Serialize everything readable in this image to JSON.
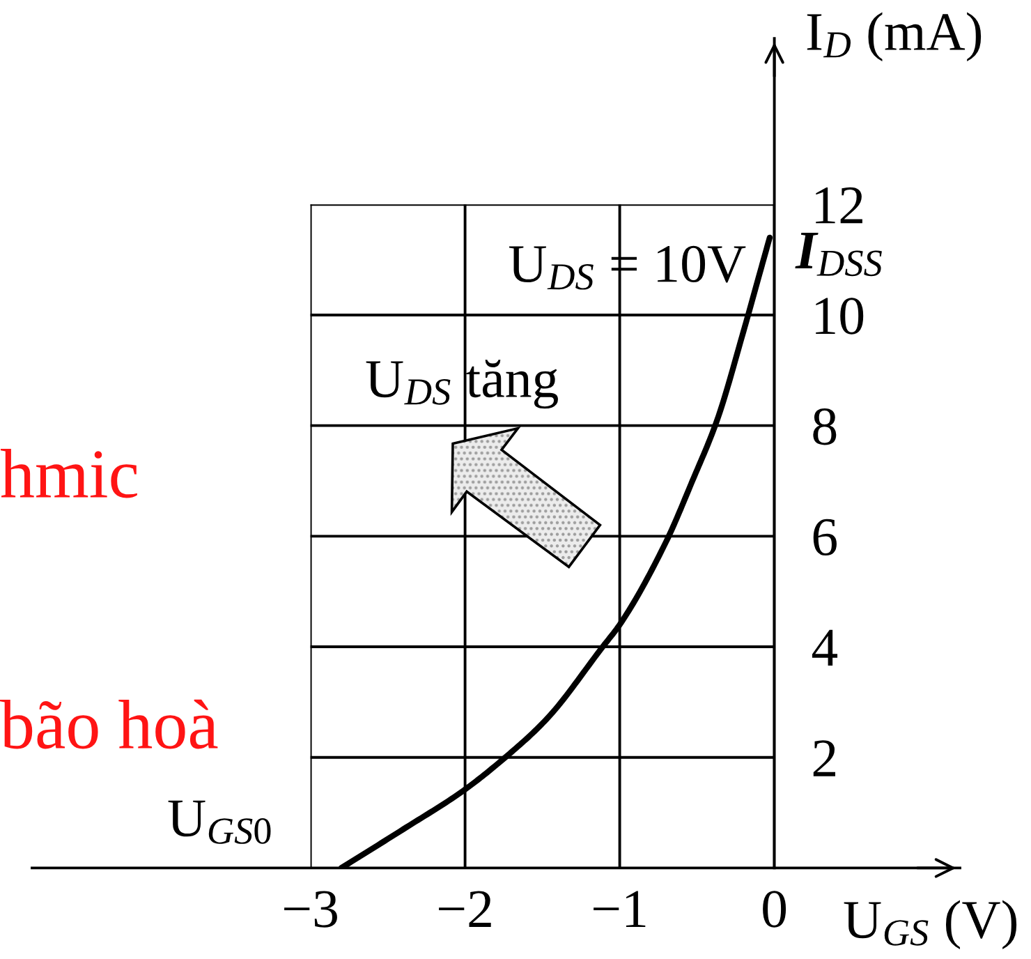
{
  "chart_data": {
    "type": "line",
    "xlabel": "U$_{GS}$ (V)",
    "ylabel": "I$_{D}$ (mA)",
    "annotations": [
      "hmic",
      "bão hoà",
      "U$_{GS0}$",
      {
        "text": "I$_{DSS}$",
        "x": 0,
        "y": 11.4
      },
      "U$_{DS}$ tăng"
    ],
    "series": [
      {
        "name": "U$_{DS}$ = 10V",
        "color": "#000000",
        "x": [
          -2.8,
          -2.4,
          -2.01,
          -1.74,
          -1.47,
          -1.11,
          -1.0,
          -0.7,
          -0.53,
          -0.37,
          -0.2,
          -0.1,
          -0.03
        ],
        "values": [
          0,
          0.7,
          1.4,
          2.0,
          2.7,
          4.0,
          4.4,
          5.9,
          7.0,
          8.1,
          9.7,
          10.7,
          11.4
        ]
      }
    ],
    "xlim": [
      -4.8,
      1.2
    ],
    "ylim": [
      0,
      15
    ],
    "xticks": [
      {
        "value": -3,
        "label": "−3"
      },
      {
        "value": -2,
        "label": "−2"
      },
      {
        "value": -1,
        "label": "−1"
      },
      0
    ],
    "yticks": [
      2,
      4,
      6,
      8,
      10,
      12
    ],
    "grid": true,
    "line_style": "solid"
  }
}
